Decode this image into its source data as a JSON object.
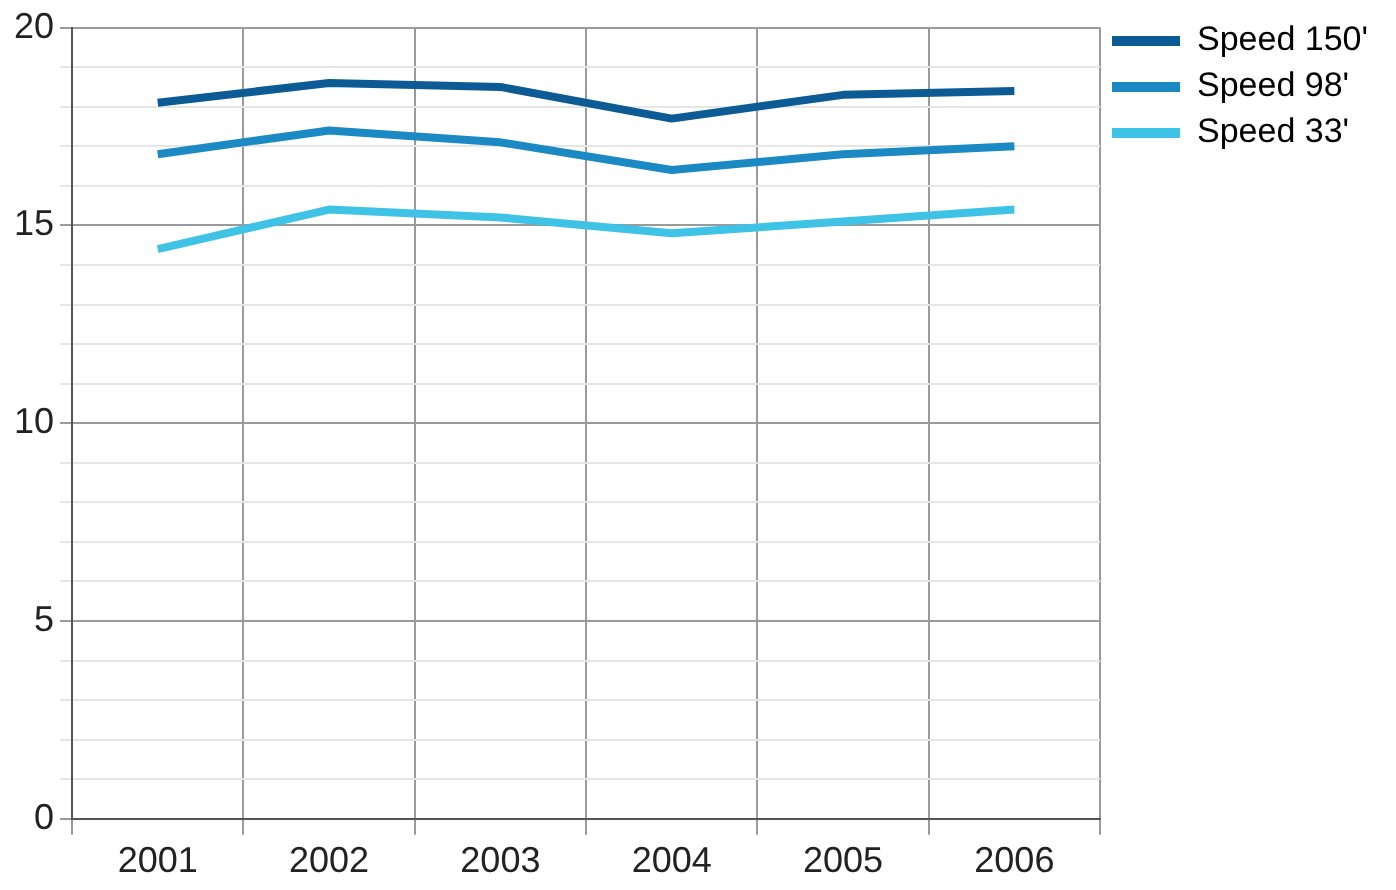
{
  "chart_data": {
    "type": "line",
    "categories": [
      "2001",
      "2002",
      "2003",
      "2004",
      "2005",
      "2006"
    ],
    "series": [
      {
        "name": "Speed 150'",
        "color": "#0d5b95",
        "values": [
          18.1,
          18.6,
          18.5,
          17.7,
          18.3,
          18.4
        ]
      },
      {
        "name": "Speed 98'",
        "color": "#1b89c3",
        "values": [
          16.8,
          17.4,
          17.1,
          16.4,
          16.8,
          17.0
        ]
      },
      {
        "name": "Speed 33'",
        "color": "#3ec3e6",
        "values": [
          14.4,
          15.4,
          15.2,
          14.8,
          15.1,
          15.4
        ]
      }
    ],
    "ylim": [
      0,
      20
    ],
    "yticks": [
      0,
      {
        "value": 1,
        "label": null
      },
      {
        "value": 2,
        "label": null
      },
      {
        "value": 3,
        "label": null
      },
      {
        "value": 4,
        "label": null
      },
      5,
      {
        "value": 6,
        "label": null
      },
      {
        "value": 7,
        "label": null
      },
      {
        "value": 8,
        "label": null
      },
      {
        "value": 9,
        "label": null
      },
      10,
      {
        "value": 11,
        "label": null
      },
      {
        "value": 12,
        "label": null
      },
      {
        "value": 13,
        "label": null
      },
      {
        "value": 14,
        "label": null
      },
      15,
      {
        "value": 16,
        "label": null
      },
      {
        "value": 17,
        "label": null
      },
      {
        "value": 18,
        "label": null
      },
      {
        "value": 19,
        "label": null
      },
      20
    ],
    "grid": true,
    "legend": "top right",
    "marker": "none",
    "line_style": "solid"
  }
}
